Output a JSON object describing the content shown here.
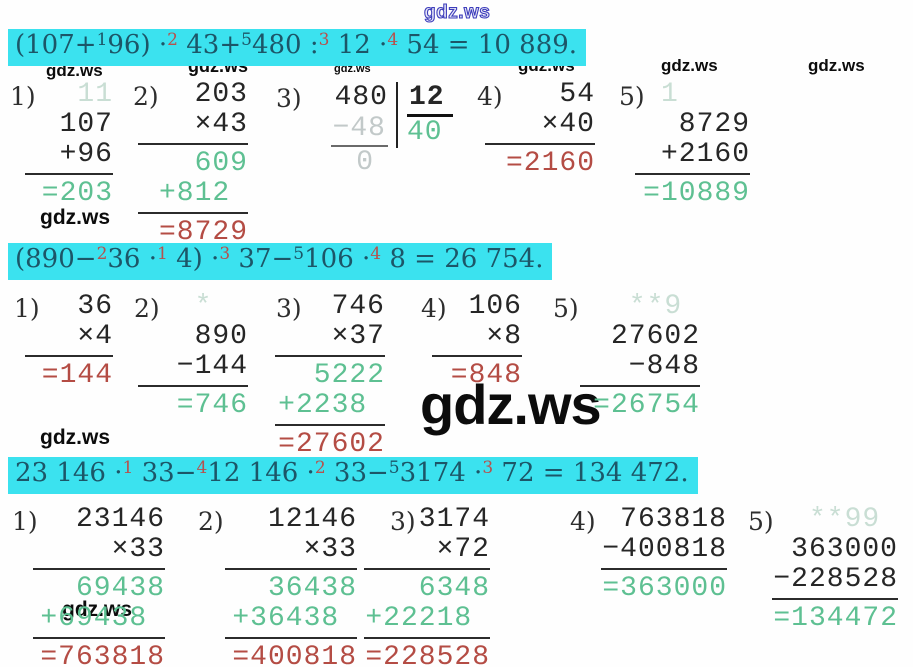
{
  "watermark": {
    "text": "gdz.ws"
  },
  "colors": {
    "highlight_cyan": "#3be2ef",
    "equation_text": "#1c5668",
    "superscript_red": "#b5524e",
    "result_green": "#5ec092",
    "result_red": "#b44c44",
    "carry_faint_green": "#c9ded4",
    "faint_gray": "#c2c9c9",
    "ink": "#262626",
    "watermark_outline_blue": "#3d3dbb"
  },
  "equations": [
    {
      "segments": [
        {
          "t": "(107+"
        },
        {
          "t": "1",
          "sup": true,
          "c": "dark"
        },
        {
          "t": "96) ·"
        },
        {
          "t": "2",
          "sup": true,
          "c": "red"
        },
        {
          "t": " 43+"
        },
        {
          "t": "5",
          "sup": true,
          "c": "dark"
        },
        {
          "t": "480 :"
        },
        {
          "t": "3",
          "sup": true,
          "c": "red"
        },
        {
          "t": " 12 ·"
        },
        {
          "t": "4",
          "sup": true,
          "c": "red"
        },
        {
          "t": " 54 = 10 889."
        }
      ]
    },
    {
      "segments": [
        {
          "t": "(890−"
        },
        {
          "t": "2",
          "sup": true,
          "c": "red"
        },
        {
          "t": "36 ·"
        },
        {
          "t": "1",
          "sup": true,
          "c": "red"
        },
        {
          "t": " 4) ·"
        },
        {
          "t": "3",
          "sup": true,
          "c": "red"
        },
        {
          "t": " 37−"
        },
        {
          "t": "5",
          "sup": true,
          "c": "dark"
        },
        {
          "t": "106 ·"
        },
        {
          "t": "4",
          "sup": true,
          "c": "red"
        },
        {
          "t": " 8 = 26 754."
        }
      ]
    },
    {
      "segments": [
        {
          "t": "23 146 ·"
        },
        {
          "t": "1",
          "sup": true,
          "c": "red"
        },
        {
          "t": " 33−"
        },
        {
          "t": "4",
          "sup": true,
          "c": "red"
        },
        {
          "t": "12 146 ·"
        },
        {
          "t": "2",
          "sup": true,
          "c": "red"
        },
        {
          "t": " 33−"
        },
        {
          "t": "5",
          "sup": true,
          "c": "dark"
        },
        {
          "t": "3174 ·"
        },
        {
          "t": "3",
          "sup": true,
          "c": "red"
        },
        {
          "t": " 72 = 134 472."
        }
      ]
    }
  ],
  "solutions": [
    [
      {
        "label": "1)",
        "rows": [
          {
            "t": "11",
            "c": "carry"
          },
          {
            "t": "107",
            "c": "ink"
          },
          {
            "t": "+96",
            "c": "ink"
          },
          {
            "hr": true
          },
          {
            "t": "=203",
            "c": "green"
          }
        ]
      },
      {
        "label": "2)",
        "rows": [
          {
            "t": "203",
            "c": "ink"
          },
          {
            "t": "×43",
            "c": "ink"
          },
          {
            "hr": true
          },
          {
            "t": "609",
            "c": "green"
          },
          {
            "t": "+812",
            "c": "green",
            "pad": 1
          },
          {
            "hr": true
          },
          {
            "t": "=8729",
            "c": "red"
          }
        ]
      },
      {
        "label": "3)",
        "division": {
          "dividend": "480",
          "divisor": "12",
          "sub": "−48",
          "rem": "0",
          "quotient": "40"
        }
      },
      {
        "label": "4)",
        "rows": [
          {
            "t": "54",
            "c": "ink"
          },
          {
            "t": "×40",
            "c": "ink"
          },
          {
            "hr": true
          },
          {
            "t": "=2160",
            "c": "red"
          }
        ]
      },
      {
        "label": "5)",
        "rows": [
          {
            "t": "1",
            "c": "carry",
            "pad": 4
          },
          {
            "t": "8729",
            "c": "ink"
          },
          {
            "t": "+2160",
            "c": "ink"
          },
          {
            "hr": true
          },
          {
            "t": "=10889",
            "c": "green"
          }
        ]
      }
    ],
    [
      {
        "label": "1)",
        "rows": [
          {
            "t": "36",
            "c": "ink"
          },
          {
            "t": "×4",
            "c": "ink"
          },
          {
            "hr": true
          },
          {
            "t": "=144",
            "c": "red"
          }
        ]
      },
      {
        "label": "2)",
        "rows": [
          {
            "t": "*",
            "c": "carry",
            "pad": 2
          },
          {
            "t": "890",
            "c": "ink"
          },
          {
            "t": "−144",
            "c": "ink"
          },
          {
            "hr": true
          },
          {
            "t": "=746",
            "c": "green"
          }
        ]
      },
      {
        "label": "3)",
        "rows": [
          {
            "t": "746",
            "c": "ink"
          },
          {
            "t": "×37",
            "c": "ink"
          },
          {
            "hr": true
          },
          {
            "t": "5222",
            "c": "green"
          },
          {
            "t": "+2238",
            "c": "green",
            "pad": 1
          },
          {
            "hr": true
          },
          {
            "t": "=27602",
            "c": "red"
          }
        ]
      },
      {
        "label": "4)",
        "rows": [
          {
            "t": "106",
            "c": "ink"
          },
          {
            "t": "×8",
            "c": "ink"
          },
          {
            "hr": true
          },
          {
            "t": "=848",
            "c": "red"
          }
        ]
      },
      {
        "label": "5)",
        "rows": [
          {
            "t": "**9",
            "c": "carry",
            "pad": 1
          },
          {
            "t": "27602",
            "c": "ink"
          },
          {
            "t": "−848",
            "c": "ink"
          },
          {
            "hr": true
          },
          {
            "t": "=26754",
            "c": "green"
          }
        ]
      }
    ],
    [
      {
        "label": "1)",
        "rows": [
          {
            "t": "23146",
            "c": "ink"
          },
          {
            "t": "×33",
            "c": "ink"
          },
          {
            "hr": true
          },
          {
            "t": "69438",
            "c": "green"
          },
          {
            "t": "+69438",
            "c": "green",
            "pad": 1
          },
          {
            "hr": true
          },
          {
            "t": "=763818",
            "c": "red"
          }
        ]
      },
      {
        "label": "2)",
        "rows": [
          {
            "t": "12146",
            "c": "ink"
          },
          {
            "t": "×33",
            "c": "ink"
          },
          {
            "hr": true
          },
          {
            "t": "36438",
            "c": "green"
          },
          {
            "t": "+36438",
            "c": "green",
            "pad": 1
          },
          {
            "hr": true
          },
          {
            "t": "=400818",
            "c": "red"
          }
        ]
      },
      {
        "label": "3)",
        "rows": [
          {
            "t": "3174",
            "c": "ink"
          },
          {
            "t": "×72",
            "c": "ink"
          },
          {
            "hr": true
          },
          {
            "t": "6348",
            "c": "green"
          },
          {
            "t": "+22218",
            "c": "green",
            "pad": 1
          },
          {
            "hr": true
          },
          {
            "t": "=228528",
            "c": "red"
          }
        ]
      },
      {
        "label": "4)",
        "rows": [
          {
            "t": "763818",
            "c": "ink"
          },
          {
            "t": "−400818",
            "c": "ink"
          },
          {
            "hr": true
          },
          {
            "t": "=363000",
            "c": "green"
          }
        ]
      },
      {
        "label": "5)",
        "rows": [
          {
            "t": "**99",
            "c": "carry",
            "pad": 1
          },
          {
            "t": "363000",
            "c": "ink"
          },
          {
            "t": "−228528",
            "c": "ink"
          },
          {
            "hr": true
          },
          {
            "t": "=134472",
            "c": "green"
          }
        ]
      }
    ]
  ]
}
